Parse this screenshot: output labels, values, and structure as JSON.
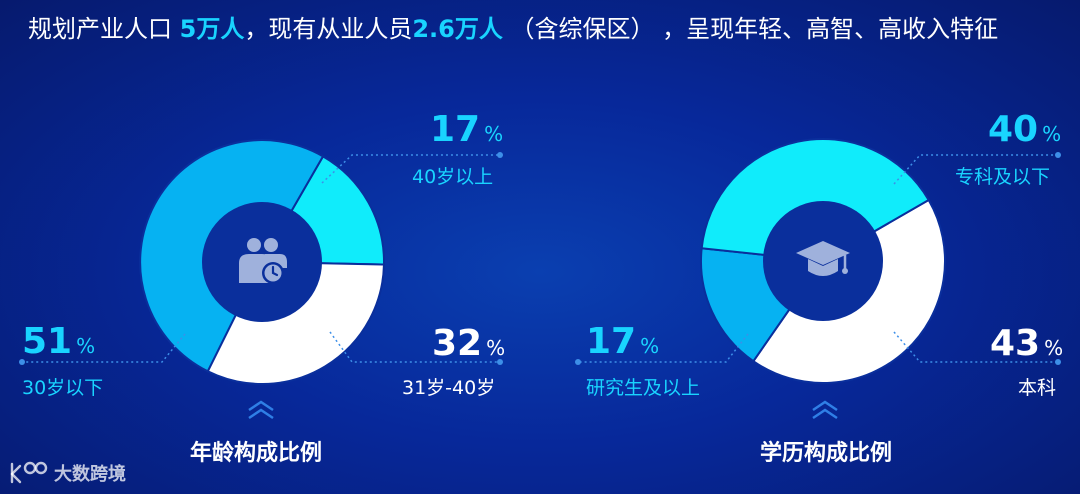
{
  "headline": {
    "part1": "规划产业人口 ",
    "hl1": "5万人",
    "part2": "，现有从业人员",
    "hl2": "2.6万人",
    "part3": " （含综保区） ，呈现年轻、高智、高收入特征"
  },
  "colors": {
    "cyan": "#10ecfb",
    "sky": "#06b2f2",
    "white": "#ffffff",
    "hub": "#0a2f9c"
  },
  "chart_data": [
    {
      "type": "pie",
      "title": "年龄构成比例",
      "icon": "people-clock-icon",
      "slices": [
        {
          "label": "40岁以上",
          "value": 17,
          "color": "#10ecfb"
        },
        {
          "label": "31岁-40岁",
          "value": 32,
          "color": "#ffffff"
        },
        {
          "label": "30岁以下",
          "value": 51,
          "color": "#06b2f2"
        }
      ]
    },
    {
      "type": "pie",
      "title": "学历构成比例",
      "icon": "graduation-cap-icon",
      "slices": [
        {
          "label": "本科",
          "value": 43,
          "color": "#ffffff"
        },
        {
          "label": "研究生及以上",
          "value": 17,
          "color": "#06b2f2"
        },
        {
          "label": "专科及以下",
          "value": 40,
          "color": "#10ecfb"
        }
      ]
    }
  ],
  "pct_sign": "%",
  "logo": {
    "text": "大数跨境",
    "icon": "brand-logo-icon"
  }
}
